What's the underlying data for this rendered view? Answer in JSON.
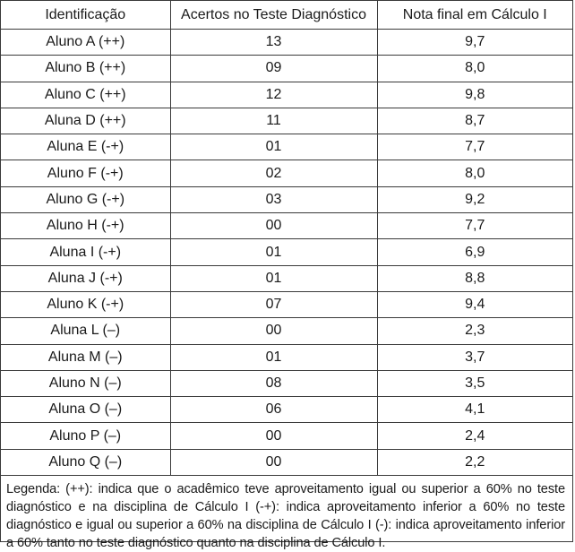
{
  "table": {
    "headers": [
      "Identificação",
      "Acertos no Teste Diagnóstico",
      "Nota final em Cálculo I"
    ],
    "rows": [
      [
        "Aluno A (++)",
        "13",
        "9,7"
      ],
      [
        "Aluno B (++)",
        "09",
        "8,0"
      ],
      [
        "Aluno C (++)",
        "12",
        "9,8"
      ],
      [
        "Aluna D (++)",
        "11",
        "8,7"
      ],
      [
        "Aluna E (-+)",
        "01",
        "7,7"
      ],
      [
        "Aluno F (-+)",
        "02",
        "8,0"
      ],
      [
        "Aluno G (-+)",
        "03",
        "9,2"
      ],
      [
        "Aluno H (-+)",
        "00",
        "7,7"
      ],
      [
        "Aluna I  (-+)",
        "01",
        "6,9"
      ],
      [
        "Aluna J (-+)",
        "01",
        "8,8"
      ],
      [
        "Aluno K (-+)",
        "07",
        "9,4"
      ],
      [
        "Aluna L (–)",
        "00",
        "2,3"
      ],
      [
        "Aluna M (–)",
        "01",
        "3,7"
      ],
      [
        "Aluno N (–)",
        "08",
        "3,5"
      ],
      [
        "Aluna O (–)",
        "06",
        "4,1"
      ],
      [
        "Aluno P (–)",
        "00",
        "2,4"
      ],
      [
        "Aluno Q (–)",
        "00",
        "2,2"
      ]
    ]
  },
  "legend": "Legenda: (++): indica que o acadêmico teve aproveitamento igual ou superior a 60% no teste diagnóstico e na disciplina de Cálculo I (-+): indica aproveitamento inferior a 60% no teste diagnóstico e igual ou superior a 60% na disciplina de Cálculo I (-): indica aproveitamento inferior a 60% tanto no teste diagnóstico quanto na disciplina de Cálculo I."
}
